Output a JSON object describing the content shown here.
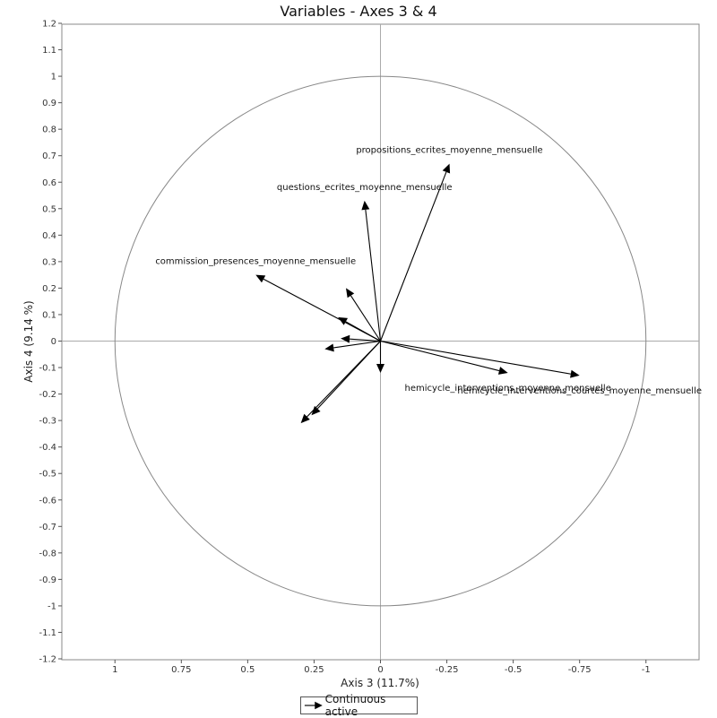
{
  "chart_data": {
    "type": "scatter",
    "title": "Variables - Axes 3 & 4",
    "xlabel": "Axis 3 (11.7%)",
    "ylabel": "Axis 4 (9.14 %)",
    "xlim": [
      1.2,
      -1.2
    ],
    "ylim": [
      -1.2,
      1.2
    ],
    "x_reversed": true,
    "x_ticks": [
      "1",
      "0.75",
      "0.5",
      "0.25",
      "0",
      "-0.25",
      "-0.5",
      "-0.75",
      "-1"
    ],
    "y_ticks": [
      "1.2",
      "1.1",
      "1",
      "0.9",
      "0.8",
      "0.7",
      "0.6",
      "0.5",
      "0.4",
      "0.3",
      "0.2",
      "0.1",
      "0",
      "-0.1",
      "-0.2",
      "-0.3",
      "-0.4",
      "-0.5",
      "-0.6",
      "-0.7",
      "-0.8",
      "-0.9",
      "-1",
      "-1.1",
      "-1.2"
    ],
    "grid": false,
    "unit_circle": true,
    "legend": {
      "placement": "bottom",
      "entries": [
        "Continuous active"
      ]
    },
    "vectors": [
      {
        "label": "propositions_ecrites_moyenne_mensuelle",
        "x": -0.26,
        "y": 0.67
      },
      {
        "label": "questions_ecrites_moyenne_mensuelle",
        "x": 0.06,
        "y": 0.53
      },
      {
        "label": "commission_presences_moyenne_mensuelle",
        "x": 0.47,
        "y": 0.25
      },
      {
        "label": "hemicycle_interventions_courtes_moyenne_mensuelle",
        "x": -0.75,
        "y": -0.13
      },
      {
        "label": "hemicycle_interventions_moyenne_mensuelle",
        "x": -0.48,
        "y": -0.12
      },
      {
        "label": "",
        "x": 0.13,
        "y": 0.2
      },
      {
        "label": "",
        "x": 0.16,
        "y": 0.09
      },
      {
        "label": "",
        "x": 0.15,
        "y": 0.01
      },
      {
        "label": "",
        "x": 0.21,
        "y": -0.03
      },
      {
        "label": "",
        "x": 0.0,
        "y": -0.12
      },
      {
        "label": "",
        "x": 0.26,
        "y": -0.28
      },
      {
        "label": "",
        "x": 0.3,
        "y": -0.31
      }
    ]
  },
  "legend_label": "Continuous active"
}
